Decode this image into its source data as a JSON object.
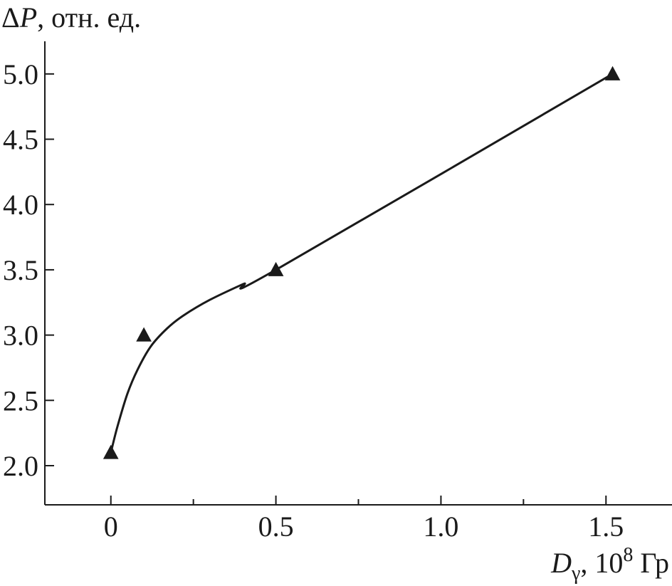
{
  "chart_data": {
    "type": "line",
    "ylabel_symbol": "Δ",
    "ylabel_var": "P",
    "ylabel_rest": ", отн. ед.",
    "xlabel_var": "D",
    "xlabel_sub": "γ",
    "xlabel_mid": ", 10",
    "xlabel_exp": "8",
    "xlabel_unit": " Гр",
    "xlim": [
      -0.2,
      1.7
    ],
    "ylim": [
      1.7,
      5.25
    ],
    "x_ticks": [
      {
        "value": 0,
        "label": "0"
      },
      {
        "value": 0.5,
        "label": "0.5"
      },
      {
        "value": 1.0,
        "label": "1.0"
      },
      {
        "value": 1.5,
        "label": "1.5"
      }
    ],
    "x_minor_ticks": [
      0.25,
      0.75,
      1.25
    ],
    "y_ticks": [
      {
        "value": 2.0,
        "label": "2.0"
      },
      {
        "value": 2.5,
        "label": "2.5"
      },
      {
        "value": 3.0,
        "label": "3.0"
      },
      {
        "value": 3.5,
        "label": "3.5"
      },
      {
        "value": 4.0,
        "label": "4.0"
      },
      {
        "value": 4.5,
        "label": "4.5"
      },
      {
        "value": 5.0,
        "label": "5.0"
      }
    ],
    "points": [
      {
        "x": 0,
        "y": 2.1
      },
      {
        "x": 0.1,
        "y": 3.0
      },
      {
        "x": 0.5,
        "y": 3.5
      },
      {
        "x": 1.52,
        "y": 5.0
      }
    ],
    "fit_curve": [
      {
        "x": 0.0,
        "y": 2.1
      },
      {
        "x": 0.02,
        "y": 2.3
      },
      {
        "x": 0.05,
        "y": 2.55
      },
      {
        "x": 0.08,
        "y": 2.73
      },
      {
        "x": 0.12,
        "y": 2.91
      },
      {
        "x": 0.17,
        "y": 3.05
      },
      {
        "x": 0.22,
        "y": 3.15
      },
      {
        "x": 0.3,
        "y": 3.27
      },
      {
        "x": 0.4,
        "y": 3.39
      },
      {
        "x": 0.5,
        "y": 3.5
      },
      {
        "x": 1.52,
        "y": 5.0
      }
    ],
    "grid": false,
    "colors": {
      "ink": "#1a1a1a",
      "background": "#ffffff"
    }
  }
}
